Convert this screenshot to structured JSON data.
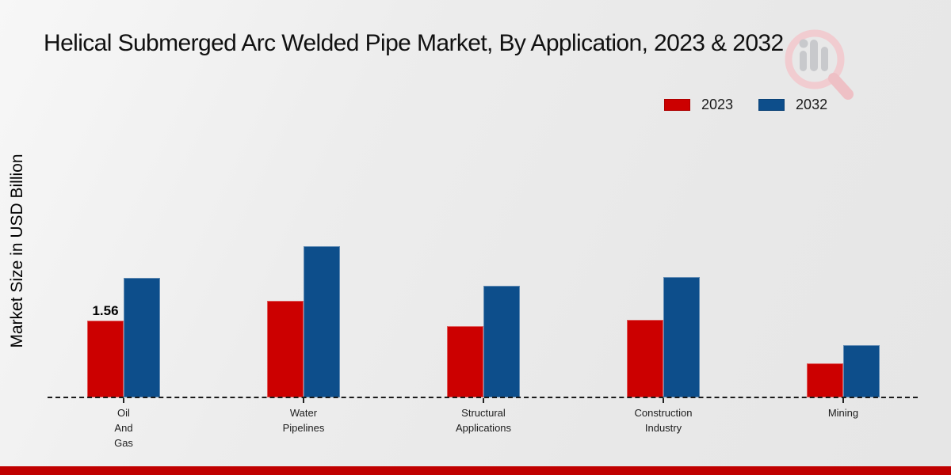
{
  "title": "Helical Submerged Arc Welded Pipe Market, By Application, 2023 & 2032",
  "legend": {
    "items": [
      {
        "label": "2023",
        "color": "#cc0000"
      },
      {
        "label": "2032",
        "color": "#0d4e8b"
      }
    ]
  },
  "watermark": "market-research-future-logo",
  "footer": {
    "bar_color": "#c00000"
  },
  "chart_data": {
    "type": "bar",
    "title": "Helical Submerged Arc Welded Pipe Market, By Application, 2023 & 2032",
    "xlabel": "",
    "ylabel": "Market Size in USD Billion",
    "categories": [
      "Oil And Gas",
      "Water Pipelines",
      "Structural Applications",
      "Construction Industry",
      "Mining"
    ],
    "category_lines": [
      [
        "Oil",
        "And",
        "Gas"
      ],
      [
        "Water",
        "Pipelines"
      ],
      [
        "Structural",
        "Applications"
      ],
      [
        "Construction",
        "Industry"
      ],
      [
        "Mining"
      ]
    ],
    "series": [
      {
        "name": "2023",
        "color": "#cc0000",
        "values": [
          1.56,
          1.96,
          1.45,
          1.58,
          0.69
        ]
      },
      {
        "name": "2032",
        "color": "#0d4e8b",
        "values": [
          2.43,
          3.07,
          2.27,
          2.44,
          1.06
        ]
      }
    ],
    "value_labels": [
      {
        "series_index": 0,
        "category_index": 0,
        "text": "1.56"
      }
    ],
    "ylim": [
      0,
      3.5
    ],
    "grid": false,
    "legend_position": "top-right",
    "baseline_style": "dashed",
    "axis_ticks_visible": false
  }
}
